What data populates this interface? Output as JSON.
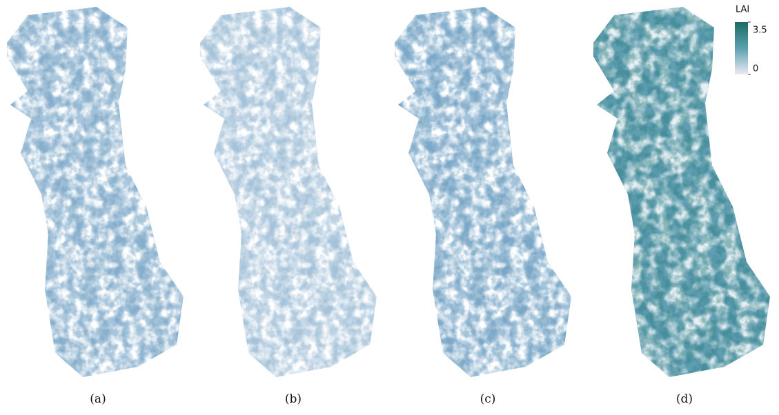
{
  "panels": [
    {
      "label": "(a)"
    },
    {
      "label": "(b)"
    },
    {
      "label": "(c)"
    },
    {
      "label": "(d)"
    }
  ],
  "colorbar": {
    "title": "LAI",
    "range": [
      0,
      3.5
    ],
    "ticks": [
      0,
      3.5
    ]
  }
}
